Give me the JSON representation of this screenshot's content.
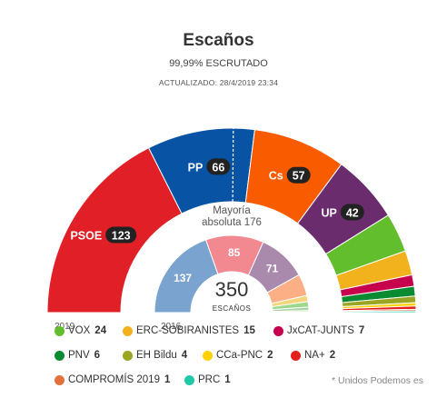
{
  "header": {
    "title": "Escaños",
    "subtitle": "99,99% ESCRUTADO",
    "updated": "ACTUALIZADO: 28/4/2019 23:34"
  },
  "majority_label_line1": "Mayoría",
  "majority_label_line2": "absoluta 176",
  "total": {
    "value": "350",
    "label": "ESCAÑOS"
  },
  "footnote": "* Unidos Podemos es",
  "chart_data": [
    {
      "type": "pie",
      "title": "Escaños",
      "ring": "outer",
      "label": "2019",
      "total": 350,
      "majority": 176,
      "series": [
        {
          "name": "PSOE",
          "value": 123,
          "color": "#e11f26"
        },
        {
          "name": "PP",
          "value": 66,
          "color": "#0853a4"
        },
        {
          "name": "Cs",
          "value": 57,
          "color": "#f85b00"
        },
        {
          "name": "UP",
          "value": 42,
          "color": "#6b2c6e"
        },
        {
          "name": "VOX",
          "value": 24,
          "color": "#63be2e"
        },
        {
          "name": "ERC-SOBIRANISTES",
          "value": 15,
          "color": "#f2b21d"
        },
        {
          "name": "JxCAT-JUNTS",
          "value": 7,
          "color": "#c7004d"
        },
        {
          "name": "PNV",
          "value": 6,
          "color": "#0a8b31"
        },
        {
          "name": "EH Bildu",
          "value": 4,
          "color": "#9aa522"
        },
        {
          "name": "CCa-PNC",
          "value": 2,
          "color": "#ffd100"
        },
        {
          "name": "NA+",
          "value": 2,
          "color": "#e3201b"
        },
        {
          "name": "COMPROMÍS 2019",
          "value": 1,
          "color": "#e4703b"
        },
        {
          "name": "PRC",
          "value": 1,
          "color": "#21c8a8"
        }
      ]
    },
    {
      "type": "pie",
      "ring": "inner",
      "label": "2016",
      "total": 350,
      "series": [
        {
          "value": 137,
          "color": "#7aa3cf"
        },
        {
          "value": 85,
          "color": "#f28890"
        },
        {
          "value": 71,
          "color": "#a98aad"
        },
        {
          "value": 32,
          "color": "#fcae84"
        },
        {
          "value": 9,
          "color": "#f5d57b"
        },
        {
          "value": 8,
          "color": "#9ed88d"
        },
        {
          "value": 5,
          "color": "#a8d4a9"
        },
        {
          "value": 2,
          "color": "#cdd27c"
        },
        {
          "value": 1,
          "color": "#fcb191"
        }
      ]
    }
  ],
  "legend": [
    {
      "name": "VOX",
      "seats": "24",
      "color": "#63be2e"
    },
    {
      "name": "ERC-SOBIRANISTES",
      "seats": "15",
      "color": "#f2b21d"
    },
    {
      "name": "JxCAT-JUNTS",
      "seats": "7",
      "color": "#c7004d"
    },
    {
      "name": "PNV",
      "seats": "6",
      "color": "#0a8b31"
    },
    {
      "name": "EH Bildu",
      "seats": "4",
      "color": "#9aa522"
    },
    {
      "name": "CCa-PNC",
      "seats": "2",
      "color": "#ffd100"
    },
    {
      "name": "NA+",
      "seats": "2",
      "color": "#e3201b"
    },
    {
      "name": "COMPROMÍS 2019",
      "seats": "1",
      "color": "#e4703b"
    },
    {
      "name": "PRC",
      "seats": "1",
      "color": "#21c8a8"
    }
  ]
}
